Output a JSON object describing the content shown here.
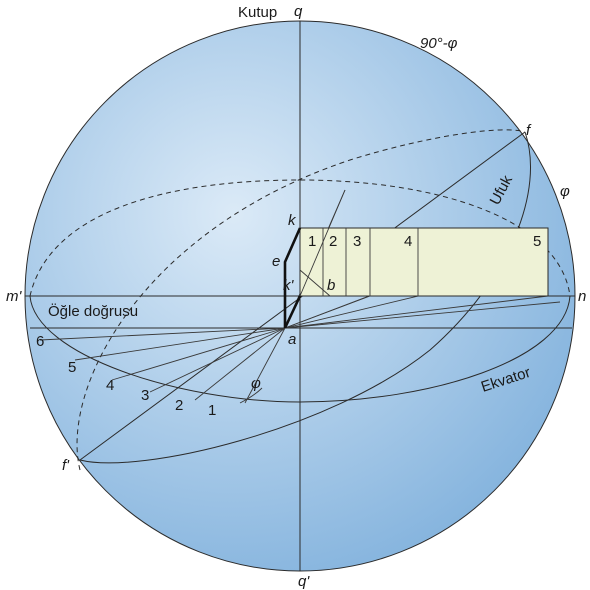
{
  "colors": {
    "sphere_fill_light": "#d8e8f6",
    "sphere_fill_dark": "#7fb0dc",
    "panel_fill": "#eef2d6",
    "line": "#2b2b2b"
  },
  "labels": {
    "kutup": "Kutup",
    "q": "q",
    "q_prime": "q'",
    "colatitude": "90°-φ",
    "phi_right": "φ",
    "phi_angle": "φ",
    "f": "f",
    "f_prime": "f'",
    "m_prime": "m'",
    "n": "n",
    "k": "k",
    "k_prime": "k'",
    "e": "e",
    "a": "a",
    "b": "b",
    "ufuk": "Ufuk",
    "ekvator": "Ekvator",
    "ogle": "Öğle doğrusu"
  },
  "panel_numbers": [
    "1",
    "2",
    "3",
    "4",
    "5"
  ],
  "equator_numbers": [
    "1",
    "2",
    "3",
    "4",
    "5",
    "6"
  ]
}
